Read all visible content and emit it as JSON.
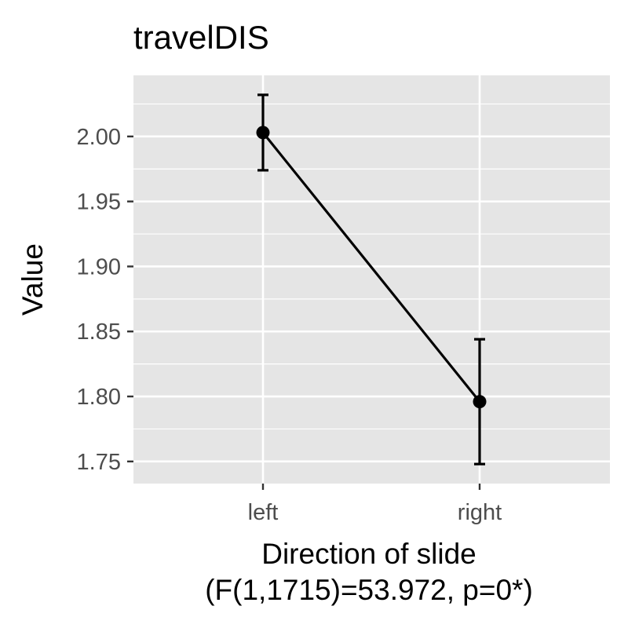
{
  "chart_data": {
    "type": "line",
    "title": "travelDIS",
    "xlabel": "Direction of slide",
    "xlabel_sub": "(F(1,1715)=53.972, p=0*)",
    "ylabel": "Value",
    "categories": [
      "left",
      "right"
    ],
    "series": [
      {
        "values": [
          2.003,
          1.796
        ],
        "error_low": [
          1.974,
          1.748
        ],
        "error_high": [
          2.032,
          1.844
        ]
      }
    ],
    "ylim": [
      1.733,
      2.047
    ],
    "yticks": [
      1.75,
      1.8,
      1.85,
      1.9,
      1.95,
      2.0
    ],
    "ytick_labels": [
      "1.75",
      "1.80",
      "1.85",
      "1.90",
      "1.95",
      "2.00"
    ],
    "grid": true,
    "legend": "none",
    "colors": {
      "panel": "#e5e5e5",
      "grid": "#ffffff",
      "line": "#000000",
      "tick_text": "#4d4d4d"
    }
  }
}
